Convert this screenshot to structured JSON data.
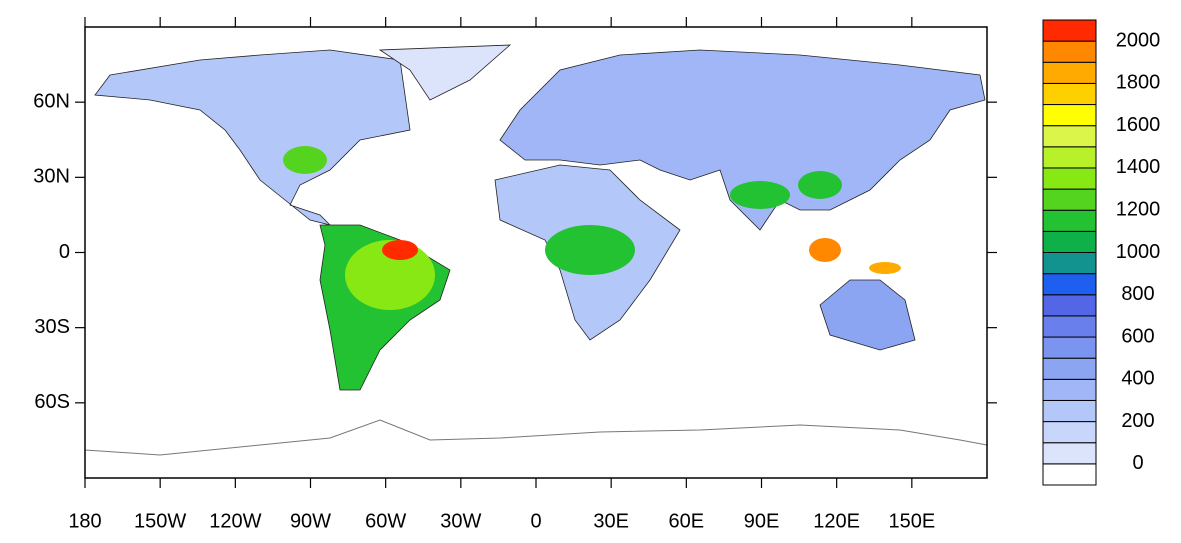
{
  "map": {
    "xlim": [
      -180,
      180
    ],
    "ylim": [
      -90,
      90
    ],
    "xticks": [
      {
        "value": -180,
        "label": "180"
      },
      {
        "value": -150,
        "label": "150W"
      },
      {
        "value": -120,
        "label": "120W"
      },
      {
        "value": -90,
        "label": "90W"
      },
      {
        "value": -60,
        "label": "60W"
      },
      {
        "value": -30,
        "label": "30W"
      },
      0,
      {
        "value": 30,
        "label": "30E"
      },
      {
        "value": 60,
        "label": "60E"
      },
      {
        "value": 90,
        "label": "90E"
      },
      {
        "value": 120,
        "label": "120E"
      },
      {
        "value": 150,
        "label": "150E"
      }
    ],
    "yticks": [
      {
        "value": 60,
        "label": "60N"
      },
      {
        "value": 30,
        "label": "30N"
      },
      0,
      {
        "value": -30,
        "label": "30S"
      },
      {
        "value": -60,
        "label": "60S"
      }
    ],
    "colorbar": {
      "levels": [
        0,
        100,
        200,
        300,
        400,
        500,
        600,
        700,
        800,
        900,
        1000,
        1100,
        1200,
        1300,
        1400,
        1500,
        1600,
        1700,
        1800,
        1900,
        2000
      ],
      "labels": [
        0,
        200,
        400,
        600,
        800,
        1000,
        1200,
        1400,
        1600,
        1800,
        2000
      ],
      "colors": [
        "#ffffff",
        "#dce4fc",
        "#c8d6fb",
        "#b4c7f9",
        "#a0b6f6",
        "#8ca5f3",
        "#7a94f0",
        "#6980ec",
        "#5266e6",
        "#1f5ff0",
        "#13938f",
        "#0eb04a",
        "#22c233",
        "#55d41f",
        "#88e814",
        "#b8f02a",
        "#dcf54a",
        "#ffff00",
        "#ffd000",
        "#ffaa00",
        "#ff8800",
        "#ff2a00"
      ]
    }
  }
}
